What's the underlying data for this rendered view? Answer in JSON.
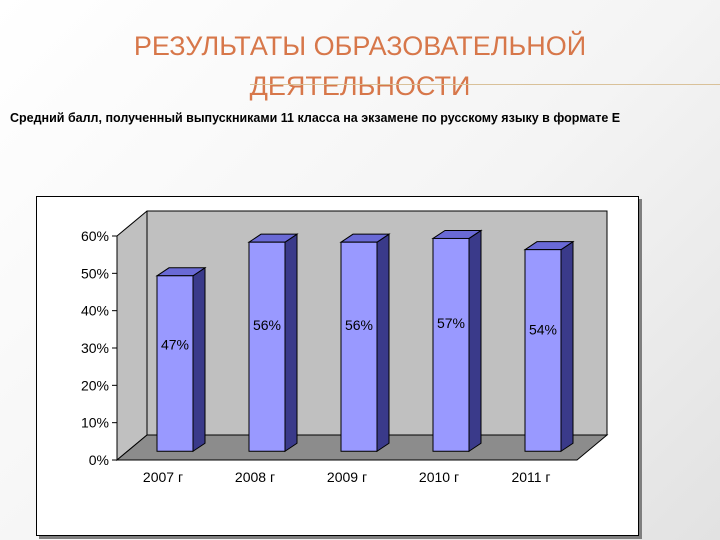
{
  "slide": {
    "title_line1": "РЕЗУЛЬТАТЫ ОБРАЗОВАТЕЛЬНОЙ",
    "title_line2": "ДЕЯТЕЛЬНОСТИ",
    "subtitle": "Средний балл, полученный выпускниками 11 класса на экзамене по русскому языку в формате Е"
  },
  "colors": {
    "title": "#d7774a",
    "bar_front": "#9999ff",
    "bar_top": "#6a6ad6",
    "bar_side": "#3a3a8a",
    "wall": "#c0c0c0",
    "floor": "#8c8c8c"
  },
  "chart_data": {
    "type": "bar",
    "title": "",
    "xlabel": "",
    "ylabel": "",
    "categories": [
      "2007 г",
      "2008 г",
      "2009 г",
      "2010 г",
      "2011 г"
    ],
    "values": [
      47,
      56,
      56,
      57,
      54
    ],
    "value_labels": [
      "47%",
      "56%",
      "56%",
      "57%",
      "54%"
    ],
    "y_ticks": [
      "0%",
      "10%",
      "20%",
      "30%",
      "40%",
      "50%",
      "60%"
    ],
    "ylim": [
      0,
      60
    ],
    "grid": false,
    "legend": "none",
    "style": "3d"
  }
}
